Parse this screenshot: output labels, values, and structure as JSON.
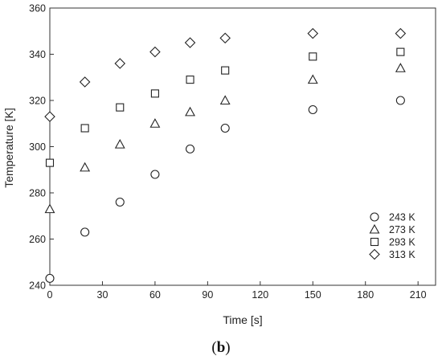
{
  "chart_data": {
    "type": "scatter",
    "xlabel": "Time [s]",
    "ylabel": "Temperature [K]",
    "xlim": [
      0,
      220
    ],
    "ylim": [
      240,
      360
    ],
    "xticks": [
      0,
      30,
      60,
      90,
      120,
      150,
      180,
      210
    ],
    "yticks": [
      240,
      260,
      280,
      300,
      320,
      340,
      360
    ],
    "grid": false,
    "legend_position": "bottom-right",
    "series": [
      {
        "name": "243 K",
        "marker": "circle",
        "x": [
          0,
          20,
          40,
          60,
          80,
          100,
          150,
          200
        ],
        "y": [
          243,
          263,
          276,
          288,
          299,
          308,
          316,
          320
        ]
      },
      {
        "name": "273 K",
        "marker": "triangle",
        "x": [
          0,
          20,
          40,
          60,
          80,
          100,
          150,
          200
        ],
        "y": [
          273,
          291,
          301,
          310,
          315,
          320,
          329,
          334
        ]
      },
      {
        "name": "293 K",
        "marker": "square",
        "x": [
          0,
          20,
          40,
          60,
          80,
          100,
          150,
          200
        ],
        "y": [
          293,
          308,
          317,
          323,
          329,
          333,
          339,
          341
        ]
      },
      {
        "name": "313 K",
        "marker": "diamond",
        "x": [
          0,
          20,
          40,
          60,
          80,
          100,
          150,
          200
        ],
        "y": [
          313,
          328,
          336,
          341,
          345,
          347,
          349,
          349
        ]
      }
    ]
  },
  "caption": {
    "open": "(",
    "letter": "b",
    "close": ")"
  }
}
